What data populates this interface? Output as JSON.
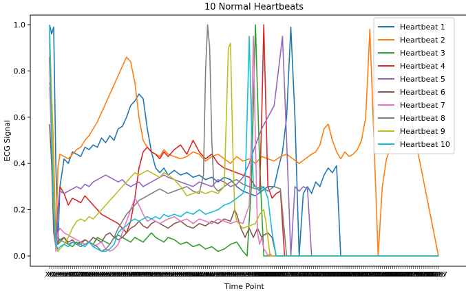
{
  "chart_data": {
    "type": "line",
    "title": "10 Normal Heartbeats",
    "xlabel": "Time Point",
    "ylabel": "ECG Signal",
    "xlim": [
      0,
      187
    ],
    "ylim": [
      -0.05,
      1.05
    ],
    "yticks": [
      0.0,
      0.2,
      0.4,
      0.6,
      0.8,
      1.0
    ],
    "ytick_labels": [
      "0.0",
      "0.2",
      "0.4",
      "0.6",
      "0.8",
      "1.0"
    ],
    "x_tick_count": 188,
    "x_tick_label_first": "X0",
    "x_tick_label_last": "X187",
    "grid": false,
    "legend_position": "top-right",
    "series": [
      {
        "name": "Heartbeat 1",
        "color": "#1f77b4",
        "x": [
          0,
          1,
          2,
          3,
          4,
          5,
          7,
          9,
          11,
          13,
          15,
          17,
          19,
          21,
          23,
          25,
          27,
          29,
          31,
          33,
          35,
          37,
          39,
          41,
          43,
          45,
          47,
          49,
          51,
          53,
          55,
          57,
          60,
          63,
          66,
          69,
          72,
          75,
          78,
          81,
          84,
          87,
          90,
          93,
          96,
          99,
          102,
          105,
          108,
          110,
          112,
          114,
          116,
          118,
          120,
          122,
          124,
          126,
          128,
          130,
          132,
          134,
          136,
          138,
          140,
          142,
          187
        ],
        "y": [
          1.0,
          0.96,
          0.99,
          0.4,
          0.05,
          0.3,
          0.42,
          0.4,
          0.45,
          0.44,
          0.43,
          0.47,
          0.46,
          0.48,
          0.47,
          0.51,
          0.49,
          0.52,
          0.5,
          0.55,
          0.56,
          0.6,
          0.65,
          0.67,
          0.7,
          0.68,
          0.55,
          0.45,
          0.38,
          0.36,
          0.38,
          0.35,
          0.37,
          0.35,
          0.36,
          0.34,
          0.35,
          0.33,
          0.34,
          0.32,
          0.34,
          0.33,
          0.3,
          0.28,
          0.27,
          0.26,
          0.28,
          0.3,
          0.3,
          0.38,
          0.45,
          0.6,
          0.99,
          0.6,
          0.0,
          0.27,
          0.3,
          0.27,
          0.32,
          0.3,
          0.35,
          0.38,
          0.36,
          0.39,
          0.0,
          0.0,
          0.0
        ]
      },
      {
        "name": "Heartbeat 2",
        "color": "#ff7f0e",
        "x": [
          0,
          1,
          2,
          3,
          4,
          5,
          7,
          9,
          11,
          13,
          15,
          17,
          19,
          21,
          23,
          25,
          27,
          29,
          31,
          33,
          35,
          37,
          39,
          41,
          43,
          45,
          47,
          49,
          51,
          53,
          55,
          57,
          60,
          63,
          66,
          69,
          72,
          75,
          78,
          81,
          84,
          87,
          90,
          93,
          96,
          99,
          102,
          105,
          108,
          111,
          114,
          117,
          120,
          123,
          126,
          128,
          130,
          132,
          134,
          136,
          138,
          140,
          142,
          144,
          146,
          148,
          150,
          152,
          154,
          156,
          158,
          160,
          162,
          164,
          166,
          168,
          170,
          172,
          187
        ],
        "y": [
          0.75,
          0.7,
          0.45,
          0.04,
          0.38,
          0.44,
          0.43,
          0.42,
          0.44,
          0.46,
          0.47,
          0.5,
          0.52,
          0.55,
          0.58,
          0.62,
          0.66,
          0.7,
          0.74,
          0.78,
          0.82,
          0.86,
          0.84,
          0.75,
          0.6,
          0.5,
          0.47,
          0.45,
          0.44,
          0.43,
          0.46,
          0.44,
          0.43,
          0.42,
          0.43,
          0.45,
          0.44,
          0.41,
          0.43,
          0.44,
          0.42,
          0.4,
          0.43,
          0.41,
          0.42,
          0.4,
          0.43,
          0.42,
          0.41,
          0.43,
          0.44,
          0.42,
          0.4,
          0.42,
          0.44,
          0.45,
          0.48,
          0.55,
          0.57,
          0.5,
          0.45,
          0.42,
          0.45,
          0.43,
          0.44,
          0.46,
          0.5,
          0.6,
          0.98,
          0.5,
          0.0,
          0.3,
          0.42,
          0.47,
          0.48,
          0.52,
          0.56,
          0.68,
          0.0
        ]
      },
      {
        "name": "Heartbeat 3",
        "color": "#2ca02c",
        "x": [
          0,
          1,
          2,
          3,
          4,
          5,
          7,
          9,
          11,
          13,
          15,
          17,
          19,
          21,
          23,
          25,
          27,
          29,
          31,
          33,
          35,
          37,
          39,
          41,
          43,
          45,
          47,
          49,
          51,
          53,
          55,
          57,
          60,
          63,
          66,
          69,
          72,
          75,
          78,
          81,
          84,
          87,
          90,
          93,
          95,
          97,
          99,
          101,
          103,
          105,
          108,
          111,
          114,
          117,
          187
        ],
        "y": [
          0.97,
          0.6,
          0.3,
          0.08,
          0.05,
          0.06,
          0.08,
          0.05,
          0.04,
          0.06,
          0.05,
          0.07,
          0.06,
          0.05,
          0.08,
          0.07,
          0.06,
          0.05,
          0.08,
          0.09,
          0.08,
          0.07,
          0.06,
          0.08,
          0.07,
          0.06,
          0.08,
          0.1,
          0.08,
          0.07,
          0.06,
          0.08,
          0.07,
          0.05,
          0.06,
          0.04,
          0.05,
          0.03,
          0.04,
          0.02,
          0.03,
          0.05,
          0.06,
          0.02,
          0.0,
          0.3,
          1.0,
          0.4,
          0.0,
          0.0,
          0.0,
          0.0,
          0.0,
          0.0,
          0.0
        ]
      },
      {
        "name": "Heartbeat 4",
        "color": "#d62728",
        "x": [
          0,
          1,
          2,
          3,
          4,
          5,
          7,
          9,
          11,
          13,
          15,
          17,
          19,
          21,
          23,
          25,
          27,
          29,
          31,
          33,
          35,
          37,
          39,
          41,
          43,
          45,
          47,
          49,
          51,
          53,
          55,
          57,
          60,
          63,
          66,
          69,
          72,
          75,
          78,
          81,
          84,
          87,
          90,
          93,
          96,
          99,
          101,
          102,
          103,
          105,
          107,
          109,
          111,
          113,
          187
        ],
        "y": [
          0.86,
          0.5,
          0.2,
          0.04,
          0.2,
          0.3,
          0.27,
          0.22,
          0.25,
          0.24,
          0.23,
          0.26,
          0.24,
          0.22,
          0.2,
          0.18,
          0.17,
          0.16,
          0.15,
          0.14,
          0.12,
          0.1,
          0.15,
          0.25,
          0.38,
          0.45,
          0.47,
          0.45,
          0.44,
          0.42,
          0.45,
          0.43,
          0.46,
          0.48,
          0.44,
          0.5,
          0.45,
          0.42,
          0.44,
          0.4,
          0.38,
          0.37,
          0.36,
          0.35,
          0.34,
          0.3,
          0.28,
          0.6,
          1.0,
          0.3,
          0.25,
          0.27,
          0.28,
          0.0,
          0.0
        ]
      },
      {
        "name": "Heartbeat 5",
        "color": "#9467bd",
        "x": [
          0,
          1,
          2,
          3,
          4,
          5,
          7,
          9,
          11,
          13,
          15,
          17,
          19,
          21,
          23,
          25,
          27,
          29,
          31,
          33,
          35,
          37,
          39,
          41,
          43,
          45,
          47,
          49,
          51,
          53,
          55,
          57,
          60,
          63,
          66,
          69,
          72,
          75,
          78,
          81,
          84,
          87,
          90,
          93,
          96,
          99,
          102,
          105,
          108,
          110,
          112,
          114,
          116,
          118,
          120,
          122,
          124,
          126,
          128,
          187
        ],
        "y": [
          0.92,
          0.6,
          0.2,
          0.05,
          0.2,
          0.28,
          0.27,
          0.28,
          0.29,
          0.3,
          0.29,
          0.31,
          0.3,
          0.32,
          0.33,
          0.34,
          0.35,
          0.34,
          0.33,
          0.32,
          0.33,
          0.31,
          0.3,
          0.31,
          0.32,
          0.3,
          0.31,
          0.32,
          0.33,
          0.34,
          0.35,
          0.34,
          0.33,
          0.32,
          0.31,
          0.3,
          0.32,
          0.31,
          0.3,
          0.33,
          0.32,
          0.3,
          0.31,
          0.34,
          0.4,
          0.48,
          0.55,
          0.6,
          0.65,
          0.8,
          0.95,
          0.5,
          0.0,
          0.3,
          0.28,
          0.3,
          0.29,
          0.0,
          0.0,
          0.0
        ]
      },
      {
        "name": "Heartbeat 6",
        "color": "#8c564b",
        "x": [
          0,
          1,
          2,
          3,
          4,
          5,
          7,
          9,
          11,
          13,
          15,
          17,
          19,
          21,
          23,
          25,
          27,
          29,
          31,
          33,
          35,
          37,
          39,
          41,
          43,
          45,
          47,
          49,
          51,
          53,
          55,
          57,
          60,
          63,
          66,
          69,
          72,
          75,
          78,
          81,
          84,
          87,
          89,
          90,
          91,
          92,
          93,
          94,
          95,
          96,
          97,
          98,
          99,
          100,
          101,
          102,
          103,
          105,
          107,
          109,
          111,
          113,
          187
        ],
        "y": [
          0.57,
          0.4,
          0.1,
          0.04,
          0.06,
          0.07,
          0.08,
          0.06,
          0.07,
          0.05,
          0.06,
          0.07,
          0.06,
          0.08,
          0.07,
          0.06,
          0.09,
          0.1,
          0.08,
          0.07,
          0.08,
          0.1,
          0.12,
          0.13,
          0.15,
          0.13,
          0.12,
          0.14,
          0.15,
          0.14,
          0.13,
          0.12,
          0.14,
          0.15,
          0.13,
          0.12,
          0.14,
          0.13,
          0.15,
          0.14,
          0.16,
          0.15,
          0.2,
          0.18,
          0.15,
          0.12,
          0.1,
          0.08,
          0.1,
          0.12,
          0.1,
          0.08,
          0.1,
          0.12,
          0.1,
          0.08,
          0.09,
          0.1,
          0.08,
          0.0,
          0.0,
          0.0,
          0.0
        ]
      },
      {
        "name": "Heartbeat 7",
        "color": "#e377c2",
        "x": [
          0,
          1,
          2,
          3,
          4,
          5,
          7,
          9,
          11,
          13,
          15,
          17,
          19,
          21,
          23,
          25,
          27,
          29,
          31,
          33,
          35,
          37,
          39,
          41,
          43,
          45,
          47,
          49,
          51,
          53,
          55,
          57,
          60,
          63,
          66,
          69,
          72,
          75,
          78,
          81,
          84,
          87,
          90,
          93,
          96,
          97,
          98,
          99,
          100,
          101,
          102,
          103,
          104,
          105,
          106,
          107,
          108,
          187
        ],
        "y": [
          0.73,
          0.5,
          0.2,
          0.02,
          0.1,
          0.12,
          0.1,
          0.09,
          0.08,
          0.07,
          0.06,
          0.05,
          0.06,
          0.04,
          0.05,
          0.06,
          0.03,
          0.02,
          0.03,
          0.05,
          0.1,
          0.15,
          0.2,
          0.25,
          0.22,
          0.18,
          0.15,
          0.16,
          0.15,
          0.14,
          0.15,
          0.16,
          0.17,
          0.15,
          0.16,
          0.14,
          0.16,
          0.15,
          0.14,
          0.16,
          0.15,
          0.14,
          0.15,
          0.14,
          0.22,
          0.5,
          0.95,
          0.5,
          0.1,
          0.05,
          0.08,
          0.03,
          0.02,
          0.0,
          0.01,
          0.0,
          0.0,
          0.0
        ]
      },
      {
        "name": "Heartbeat 8",
        "color": "#7f7f7f",
        "x": [
          0,
          1,
          2,
          3,
          4,
          5,
          7,
          9,
          11,
          13,
          15,
          17,
          19,
          21,
          23,
          25,
          27,
          29,
          31,
          33,
          35,
          37,
          39,
          41,
          43,
          45,
          47,
          49,
          51,
          53,
          55,
          57,
          60,
          63,
          66,
          69,
          72,
          74,
          75,
          76,
          77,
          78,
          79,
          81,
          84,
          87,
          90,
          93,
          96,
          99,
          102,
          105,
          108,
          111,
          114,
          187
        ],
        "y": [
          0.95,
          0.6,
          0.2,
          0.08,
          0.08,
          0.07,
          0.06,
          0.05,
          0.06,
          0.05,
          0.04,
          0.05,
          0.06,
          0.05,
          0.04,
          0.02,
          0.03,
          0.05,
          0.08,
          0.12,
          0.15,
          0.18,
          0.2,
          0.22,
          0.24,
          0.25,
          0.26,
          0.27,
          0.28,
          0.29,
          0.28,
          0.27,
          0.28,
          0.29,
          0.3,
          0.28,
          0.27,
          0.35,
          0.8,
          1.0,
          0.9,
          0.5,
          0.3,
          0.28,
          0.3,
          0.32,
          0.33,
          0.31,
          0.3,
          0.29,
          0.3,
          0.28,
          0.3,
          0.29,
          0.0,
          0.0
        ]
      },
      {
        "name": "Heartbeat 9",
        "color": "#bcbd22",
        "x": [
          0,
          1,
          2,
          3,
          4,
          5,
          7,
          9,
          11,
          13,
          15,
          17,
          19,
          21,
          23,
          25,
          27,
          29,
          31,
          33,
          35,
          37,
          39,
          41,
          43,
          45,
          47,
          49,
          51,
          53,
          55,
          57,
          60,
          63,
          66,
          69,
          72,
          75,
          78,
          81,
          84,
          85,
          86,
          87,
          88,
          89,
          90,
          93,
          96,
          99,
          101,
          103,
          104,
          105,
          106,
          187
        ],
        "y": [
          0.97,
          0.7,
          0.3,
          0.05,
          0.02,
          0.03,
          0.05,
          0.08,
          0.12,
          0.15,
          0.16,
          0.15,
          0.17,
          0.16,
          0.18,
          0.2,
          0.22,
          0.24,
          0.26,
          0.28,
          0.3,
          0.32,
          0.34,
          0.36,
          0.35,
          0.36,
          0.37,
          0.36,
          0.35,
          0.34,
          0.36,
          0.35,
          0.33,
          0.3,
          0.26,
          0.27,
          0.28,
          0.27,
          0.28,
          0.27,
          0.3,
          0.6,
          0.9,
          0.92,
          0.5,
          0.2,
          0.15,
          0.12,
          0.13,
          0.14,
          0.18,
          0.2,
          0.15,
          0.08,
          0.0,
          0.0
        ]
      },
      {
        "name": "Heartbeat 10",
        "color": "#17becf",
        "x": [
          0,
          1,
          2,
          3,
          4,
          5,
          7,
          9,
          11,
          13,
          15,
          17,
          19,
          21,
          23,
          25,
          27,
          29,
          31,
          33,
          35,
          37,
          39,
          41,
          43,
          45,
          47,
          49,
          51,
          53,
          55,
          57,
          60,
          63,
          66,
          69,
          72,
          75,
          78,
          81,
          84,
          87,
          90,
          93,
          94,
          95,
          96,
          97,
          98,
          99,
          101,
          103,
          105,
          107,
          109,
          187
        ],
        "y": [
          1.0,
          0.5,
          0.2,
          0.05,
          0.03,
          0.04,
          0.05,
          0.04,
          0.06,
          0.05,
          0.05,
          0.04,
          0.06,
          0.04,
          0.03,
          0.02,
          0.02,
          0.03,
          0.05,
          0.1,
          0.12,
          0.13,
          0.15,
          0.16,
          0.15,
          0.16,
          0.17,
          0.16,
          0.17,
          0.16,
          0.18,
          0.17,
          0.18,
          0.17,
          0.19,
          0.18,
          0.2,
          0.18,
          0.19,
          0.2,
          0.22,
          0.23,
          0.25,
          0.27,
          0.3,
          0.6,
          0.95,
          0.6,
          0.3,
          0.3,
          0.28,
          0.3,
          0.25,
          0.1,
          0.0,
          0.0
        ]
      }
    ]
  }
}
